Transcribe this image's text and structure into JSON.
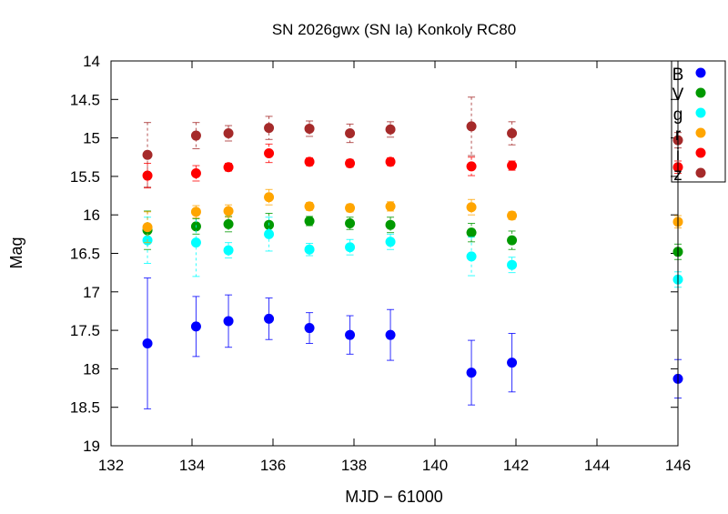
{
  "chart_data": {
    "type": "scatter",
    "title": "SN 2026gwx (SN Ia) Konkoly RC80",
    "xlabel": "MJD − 61000",
    "ylabel": "Mag",
    "xlim": [
      132,
      146
    ],
    "ylim": [
      19,
      14
    ],
    "y_inverted": true,
    "xticks": [
      "132",
      "134",
      "136",
      "138",
      "140",
      "142",
      "144",
      "146"
    ],
    "yticks": [
      "14",
      "14.5",
      "15",
      "15.5",
      "16",
      "16.5",
      "17",
      "17.5",
      "18",
      "18.5",
      "19"
    ],
    "legend_placement": "top-right",
    "x": [
      132.9,
      134.1,
      134.9,
      135.9,
      136.9,
      137.9,
      138.9,
      140.9,
      141.9,
      146.0
    ],
    "series": [
      {
        "name": "B",
        "color": "#0000ff",
        "values": [
          17.67,
          17.45,
          17.38,
          17.35,
          17.47,
          17.56,
          17.56,
          18.05,
          17.92,
          18.13
        ],
        "errors": [
          0.85,
          0.39,
          0.34,
          0.27,
          0.2,
          0.25,
          0.33,
          0.42,
          0.38,
          0.25
        ]
      },
      {
        "name": "V",
        "color": "#009900",
        "values": [
          16.2,
          16.15,
          16.12,
          16.13,
          16.08,
          16.11,
          16.13,
          16.23,
          16.33,
          16.48
        ],
        "errors": [
          0.25,
          0.1,
          0.1,
          0.15,
          0.06,
          0.08,
          0.1,
          0.12,
          0.12,
          0.1
        ]
      },
      {
        "name": "g",
        "color": "#00ffff",
        "values": [
          16.33,
          16.36,
          16.46,
          16.25,
          16.45,
          16.42,
          16.35,
          16.54,
          16.65,
          16.84
        ],
        "errors": [
          0.3,
          0.44,
          0.1,
          0.22,
          0.08,
          0.1,
          0.1,
          0.25,
          0.1,
          0.1
        ]
      },
      {
        "name": "r",
        "color": "#ffa500",
        "values": [
          16.16,
          15.96,
          15.95,
          15.77,
          15.89,
          15.91,
          15.89,
          15.9,
          16.01,
          16.09
        ],
        "errors": [
          0.2,
          0.08,
          0.08,
          0.1,
          0.05,
          0.05,
          0.06,
          0.1,
          0.05,
          0.08
        ]
      },
      {
        "name": "i",
        "color": "#ff0000",
        "values": [
          15.49,
          15.46,
          15.38,
          15.2,
          15.31,
          15.33,
          15.31,
          15.37,
          15.36,
          15.38
        ],
        "errors": [
          0.16,
          0.1,
          0.05,
          0.12,
          0.05,
          0.05,
          0.05,
          0.12,
          0.06,
          0.08
        ]
      },
      {
        "name": "z",
        "color": "#a52a2a",
        "values": [
          15.22,
          14.97,
          14.94,
          14.87,
          14.88,
          14.94,
          14.89,
          14.85,
          14.94,
          15.03
        ],
        "errors": [
          0.42,
          0.17,
          0.1,
          0.15,
          0.1,
          0.12,
          0.1,
          0.38,
          0.15,
          0.1
        ]
      }
    ],
    "grid": false
  }
}
